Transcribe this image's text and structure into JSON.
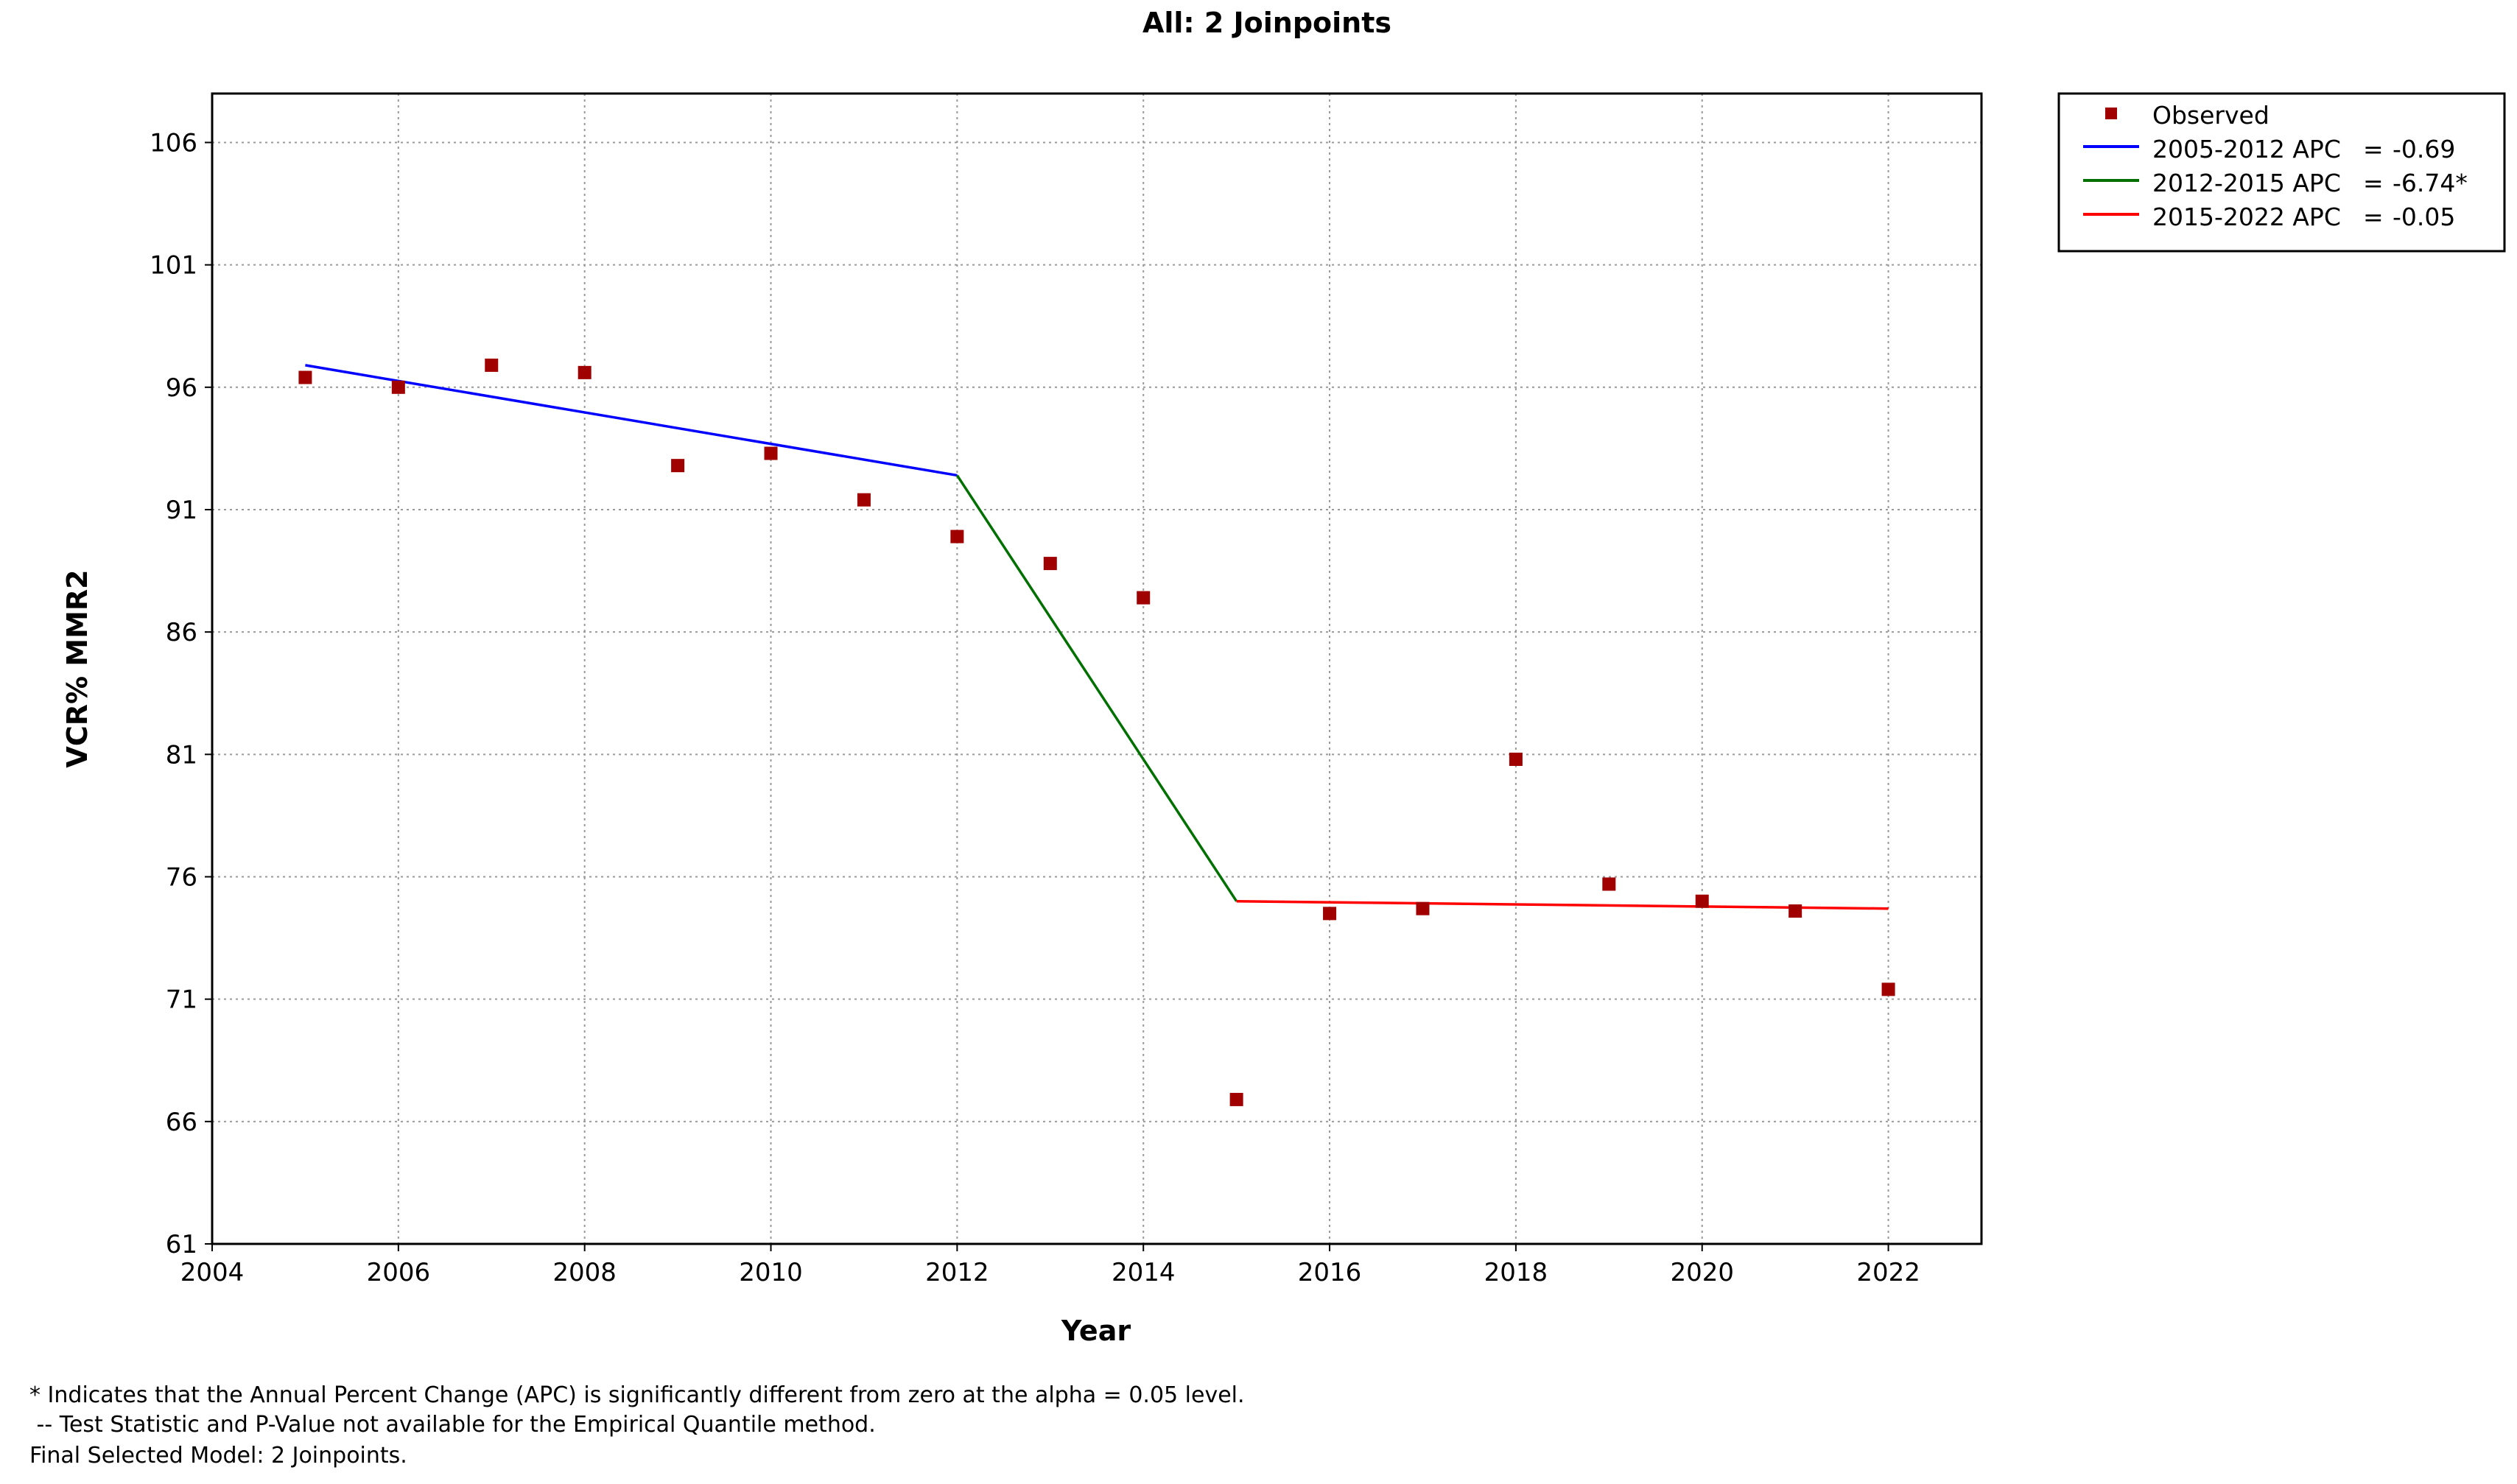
{
  "chart_data": {
    "type": "scatter",
    "title": "All: 2 Joinpoints",
    "xlabel": "Year",
    "ylabel": "VCR% MMR2",
    "xlim": [
      2004,
      2023
    ],
    "ylim": [
      61,
      108
    ],
    "xticks": [
      2004,
      2006,
      2008,
      2010,
      2012,
      2014,
      2016,
      2018,
      2020,
      2022
    ],
    "yticks": [
      61,
      66,
      71,
      76,
      81,
      86,
      91,
      96,
      101,
      106
    ],
    "grid": true,
    "legend_position": "top-right",
    "observed": {
      "name": "Observed",
      "color": "#a00000",
      "x": [
        2005,
        2006,
        2007,
        2008,
        2009,
        2010,
        2011,
        2012,
        2013,
        2014,
        2015,
        2016,
        2017,
        2018,
        2019,
        2020,
        2021,
        2022
      ],
      "y": [
        96.4,
        96.0,
        96.9,
        96.6,
        92.8,
        93.3,
        91.4,
        89.9,
        88.8,
        87.4,
        66.9,
        74.5,
        74.7,
        80.8,
        75.7,
        75.0,
        74.6,
        71.4
      ]
    },
    "segments": [
      {
        "label": "2005-2012 APC",
        "apc": "-0.69",
        "color": "#0000ff",
        "x": [
          2005,
          2012
        ],
        "y": [
          96.9,
          92.4
        ]
      },
      {
        "label": "2012-2015 APC",
        "apc": "-6.74*",
        "color": "#007000",
        "x": [
          2012,
          2015
        ],
        "y": [
          92.4,
          75.0
        ]
      },
      {
        "label": "2015-2022 APC",
        "apc": "-0.05",
        "color": "#ff0000",
        "x": [
          2015,
          2022
        ],
        "y": [
          75.0,
          74.7
        ]
      }
    ]
  },
  "footnotes": [
    "* Indicates that the Annual Percent Change (APC) is significantly different from zero at the alpha = 0.05 level.",
    " -- Test Statistic and P-Value not available for the Empirical Quantile method.",
    "Final Selected Model: 2 Joinpoints."
  ]
}
